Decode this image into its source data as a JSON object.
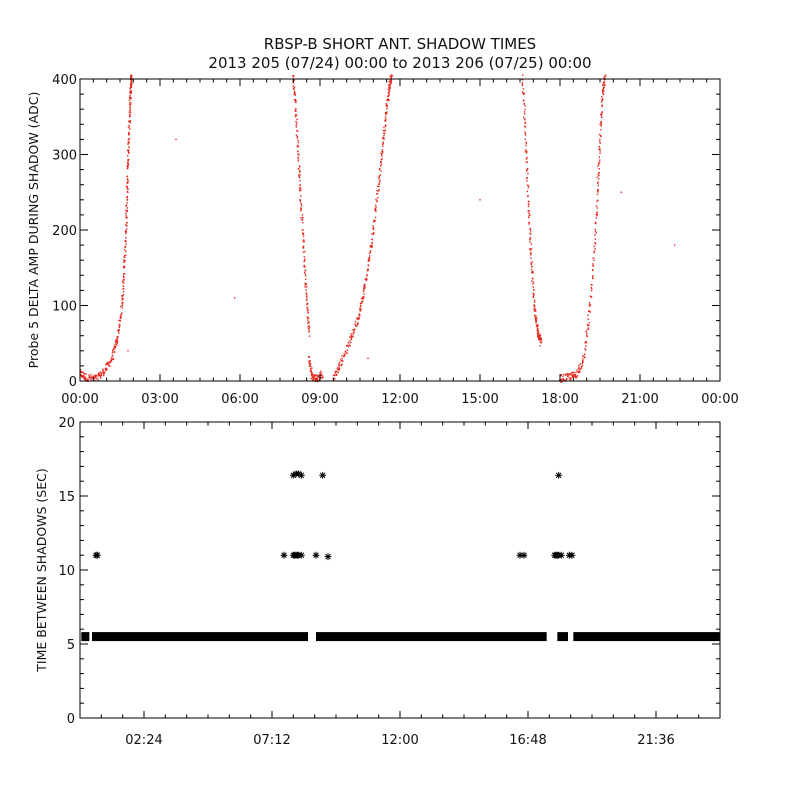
{
  "title_line1": "RBSP-B SHORT ANT. SHADOW TIMES",
  "title_line2": "2013 205 (07/24) 00:00 to 2013 206 (07/25) 00:00",
  "chart_data": [
    {
      "type": "scatter",
      "ylabel": "Probe 5 DELTA AMP DURING SHADOW (ADC)",
      "xlabel": "",
      "xlim": [
        0,
        24
      ],
      "ylim": [
        0,
        400
      ],
      "x_unit": "hours since 2013-07-24 00:00",
      "x_ticks": [
        0,
        3,
        6,
        9,
        12,
        15,
        18,
        21,
        24
      ],
      "x_tick_labels": [
        "00:00",
        "03:00",
        "06:00",
        "09:00",
        "12:00",
        "15:00",
        "18:00",
        "21:00",
        "00:00"
      ],
      "y_ticks": [
        0,
        100,
        200,
        300,
        400
      ],
      "y_tick_labels": [
        "0",
        "100",
        "200",
        "300",
        "400"
      ],
      "marker_color": "#e8261b",
      "series": [
        {
          "x": [
            0.0,
            0.2,
            0.6,
            0.9,
            1.2,
            1.4,
            1.55,
            1.65,
            1.72,
            1.76,
            1.8,
            1.84,
            1.88,
            1.91,
            1.94
          ],
          "y": [
            10,
            5,
            3,
            12,
            30,
            55,
            90,
            140,
            190,
            240,
            290,
            330,
            370,
            395,
            405
          ]
        },
        {
          "x": [
            8.0,
            8.1,
            8.2,
            8.3,
            8.4,
            8.5,
            8.6
          ],
          "y": [
            405,
            360,
            290,
            230,
            170,
            110,
            60
          ]
        },
        {
          "x": [
            8.6,
            8.7,
            8.9,
            9.1
          ],
          "y": [
            30,
            5,
            3,
            10
          ]
        },
        {
          "x": [
            9.5,
            9.8,
            10.1,
            10.4,
            10.6,
            10.8,
            11.0,
            11.2,
            11.35,
            11.5,
            11.6,
            11.7
          ],
          "y": [
            3,
            25,
            50,
            80,
            110,
            150,
            200,
            260,
            310,
            360,
            390,
            405
          ]
        },
        {
          "x": [
            16.6,
            16.7,
            16.8,
            16.9,
            17.0,
            17.1,
            17.2,
            17.3
          ],
          "y": [
            405,
            330,
            250,
            180,
            120,
            80,
            60,
            50
          ]
        },
        {
          "x": [
            18.0,
            18.3,
            18.6,
            18.9,
            19.1,
            19.3,
            19.4,
            19.5,
            19.6,
            19.7
          ],
          "y": [
            3,
            5,
            8,
            30,
            90,
            170,
            250,
            320,
            380,
            405
          ]
        },
        {
          "x": [
            3.6,
            1.8,
            5.8,
            20.3,
            22.3,
            15.0,
            10.8
          ],
          "y": [
            320,
            40,
            110,
            250,
            180,
            240,
            30
          ]
        }
      ]
    },
    {
      "type": "scatter",
      "ylabel": "TIME BETWEEN SHADOWS (SEC)",
      "xlabel": "",
      "xlim": [
        0,
        24
      ],
      "ylim": [
        0,
        20
      ],
      "x_unit": "hours since 2013-07-24 00:00",
      "x_ticks": [
        2.4,
        7.2,
        12.0,
        16.8,
        21.6
      ],
      "x_tick_labels": [
        "02:24",
        "07:12",
        "12:00",
        "16:48",
        "21:36"
      ],
      "y_ticks": [
        0,
        5,
        10,
        15,
        20
      ],
      "y_tick_labels": [
        "0",
        "5",
        "10",
        "15",
        "20"
      ],
      "marker": "asterisk",
      "marker_color": "#000000",
      "baseline_value": 5.5,
      "baseline_segments": [
        [
          0.05,
          0.35
        ],
        [
          0.45,
          8.55
        ],
        [
          8.85,
          17.5
        ],
        [
          17.9,
          18.3
        ],
        [
          18.5,
          23.98
        ]
      ],
      "outliers": {
        "x": [
          0.6,
          0.65,
          7.65,
          8.0,
          8.05,
          8.1,
          8.15,
          8.2,
          8.3,
          8.0,
          8.1,
          8.2,
          8.3,
          8.85,
          9.1,
          9.3,
          16.5,
          16.65,
          17.8,
          17.85,
          17.9,
          17.95,
          18.05,
          18.35,
          18.45,
          17.95
        ],
        "y": [
          11.0,
          11.0,
          11.0,
          11.0,
          11.0,
          11.0,
          11.0,
          11.0,
          11.0,
          16.4,
          16.5,
          16.5,
          16.4,
          11.0,
          16.4,
          10.9,
          11.0,
          11.0,
          11.0,
          11.0,
          11.0,
          11.0,
          11.0,
          11.0,
          11.0,
          16.4
        ]
      }
    }
  ]
}
